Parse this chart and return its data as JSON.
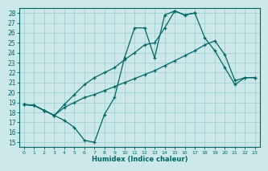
{
  "xlabel": "Humidex (Indice chaleur)",
  "bg_color": "#cce8e8",
  "grid_color": "#99cccc",
  "line_color": "#006666",
  "xlim": [
    -0.5,
    23.5
  ],
  "ylim": [
    14.5,
    28.5
  ],
  "yticks": [
    15,
    16,
    17,
    18,
    19,
    20,
    21,
    22,
    23,
    24,
    25,
    26,
    27,
    28
  ],
  "xticks": [
    0,
    1,
    2,
    3,
    4,
    5,
    6,
    7,
    8,
    9,
    10,
    11,
    12,
    13,
    14,
    15,
    16,
    17,
    18,
    19,
    20,
    21,
    22,
    23
  ],
  "line1_x": [
    0,
    1,
    2,
    3,
    4,
    5,
    6,
    7,
    8,
    9,
    10,
    11,
    12,
    13,
    14,
    15,
    16,
    17
  ],
  "line1_y": [
    18.8,
    18.7,
    18.2,
    17.7,
    17.2,
    16.5,
    15.2,
    15.0,
    17.8,
    19.5,
    23.5,
    26.5,
    26.5,
    23.5,
    27.8,
    28.2,
    27.8,
    28.0
  ],
  "line2_x": [
    0,
    1,
    2,
    3,
    4,
    5,
    6,
    7,
    8,
    9,
    10,
    11,
    12,
    13,
    14,
    15,
    16,
    17,
    18,
    19,
    20,
    21,
    22,
    23
  ],
  "line2_y": [
    18.8,
    18.7,
    18.2,
    17.7,
    18.8,
    19.8,
    20.8,
    21.5,
    22.0,
    22.5,
    23.3,
    24.0,
    24.8,
    25.0,
    26.5,
    28.2,
    27.8,
    28.0,
    25.5,
    24.2,
    22.5,
    20.8,
    21.5,
    21.5
  ],
  "line3_x": [
    0,
    1,
    2,
    3,
    4,
    5,
    6,
    7,
    8,
    9,
    10,
    11,
    12,
    13,
    14,
    15,
    16,
    17,
    18,
    19,
    20,
    21,
    22,
    23
  ],
  "line3_y": [
    18.8,
    18.7,
    18.2,
    17.7,
    18.5,
    19.0,
    19.5,
    19.8,
    20.2,
    20.6,
    21.0,
    21.4,
    21.8,
    22.2,
    22.7,
    23.2,
    23.7,
    24.2,
    24.8,
    25.2,
    23.8,
    21.2,
    21.5,
    21.5
  ]
}
